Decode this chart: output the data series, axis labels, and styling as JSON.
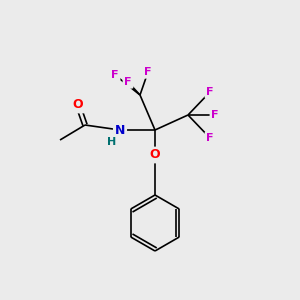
{
  "background_color": "#ebebeb",
  "fig_size": [
    3.0,
    3.0
  ],
  "dpi": 100,
  "colors": {
    "O": "#ff0000",
    "N": "#0000cc",
    "F": "#cc00cc",
    "C": "#000000",
    "H": "#007070",
    "bond": "#000000"
  }
}
